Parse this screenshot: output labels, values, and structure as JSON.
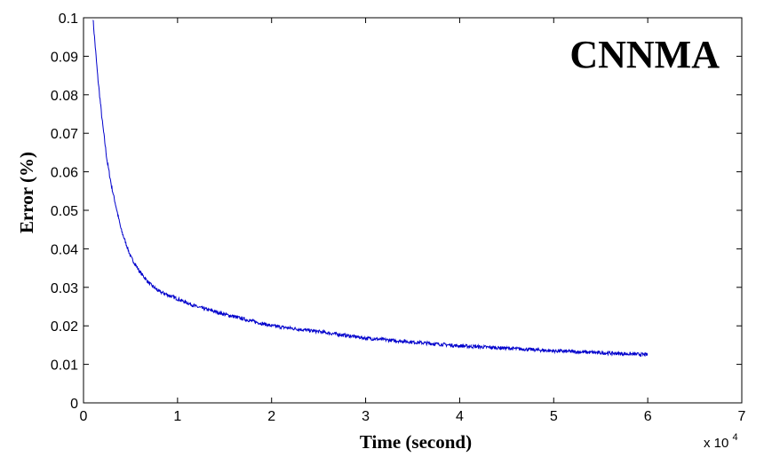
{
  "chart_data": {
    "type": "line",
    "title": "",
    "xlabel": "Time (second)",
    "ylabel": "Error (%)",
    "annotation": "CNNMA",
    "x_multiplier": {
      "base": "x 10",
      "exponent": "4"
    },
    "xlim": [
      0,
      7
    ],
    "ylim": [
      0,
      0.1
    ],
    "x_ticks": [
      0,
      1,
      2,
      3,
      4,
      5,
      6,
      7
    ],
    "x_tick_labels": [
      "0",
      "1",
      "2",
      "3",
      "4",
      "5",
      "6",
      "7"
    ],
    "y_ticks": [
      0,
      0.01,
      0.02,
      0.03,
      0.04,
      0.05,
      0.06,
      0.07,
      0.08,
      0.09,
      0.1
    ],
    "y_tick_labels": [
      "0",
      "0.01",
      "0.02",
      "0.03",
      "0.04",
      "0.05",
      "0.06",
      "0.07",
      "0.08",
      "0.09",
      "0.1"
    ],
    "grid": false,
    "line_color": "#0000cc",
    "series": [
      {
        "x": [
          0.1,
          0.15,
          0.2,
          0.25,
          0.3,
          0.4,
          0.5,
          0.6,
          0.7,
          0.8,
          1.0,
          1.2,
          1.5,
          2.0,
          2.5,
          3.0,
          3.5,
          4.0,
          4.5,
          5.0,
          5.5,
          6.0
        ],
        "values": [
          0.1,
          0.085,
          0.073,
          0.063,
          0.056,
          0.045,
          0.038,
          0.034,
          0.031,
          0.029,
          0.027,
          0.025,
          0.023,
          0.02,
          0.0185,
          0.0168,
          0.0158,
          0.0148,
          0.0142,
          0.0135,
          0.013,
          0.0125
        ]
      }
    ]
  }
}
